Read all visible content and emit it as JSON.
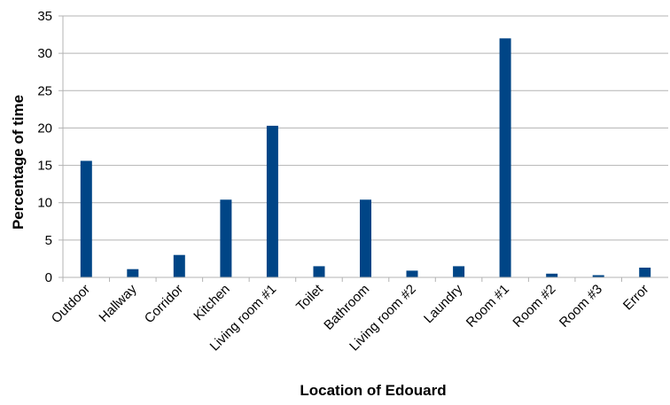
{
  "chart_data": {
    "type": "bar",
    "title": "",
    "xlabel": "Location of Edouard",
    "ylabel": "Percentage of time",
    "ylim": [
      0,
      35
    ],
    "yticks": [
      0,
      5,
      10,
      15,
      20,
      25,
      30,
      35
    ],
    "grid": true,
    "legend": "none",
    "bar_color": "#004586",
    "categories": [
      "Outdoor",
      "Hallway",
      "Corridor",
      "Kitchen",
      "Living room #1",
      "Toilet",
      "Bathroom",
      "Living room #2",
      "Laundry",
      "Room #1",
      "Room #2",
      "Room #3",
      "Error"
    ],
    "values": [
      15.6,
      1.1,
      3.0,
      10.4,
      20.3,
      1.5,
      10.4,
      0.9,
      1.5,
      32.0,
      0.5,
      0.3,
      1.3
    ]
  }
}
